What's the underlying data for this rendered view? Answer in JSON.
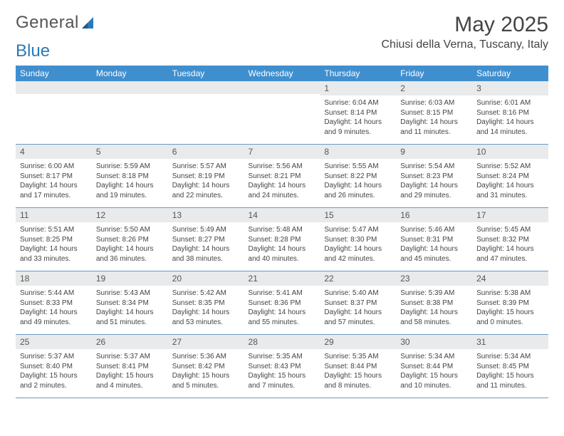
{
  "logo": {
    "text1": "General",
    "text2": "Blue"
  },
  "title": "May 2025",
  "location": "Chiusi della Verna, Tuscany, Italy",
  "colors": {
    "header_bg": "#3f8fcf",
    "header_text": "#ffffff",
    "daynum_bg": "#e9eaeb",
    "border": "#6a9bc5",
    "logo_gray": "#555555",
    "logo_blue": "#2a7ab9"
  },
  "typography": {
    "title_fontsize": 30,
    "location_fontsize": 16,
    "header_fontsize": 12,
    "daynum_fontsize": 12,
    "body_fontsize": 10
  },
  "day_headers": [
    "Sunday",
    "Monday",
    "Tuesday",
    "Wednesday",
    "Thursday",
    "Friday",
    "Saturday"
  ],
  "weeks": [
    [
      {
        "num": "",
        "sunrise": "",
        "sunset": "",
        "daylight": ""
      },
      {
        "num": "",
        "sunrise": "",
        "sunset": "",
        "daylight": ""
      },
      {
        "num": "",
        "sunrise": "",
        "sunset": "",
        "daylight": ""
      },
      {
        "num": "",
        "sunrise": "",
        "sunset": "",
        "daylight": ""
      },
      {
        "num": "1",
        "sunrise": "Sunrise: 6:04 AM",
        "sunset": "Sunset: 8:14 PM",
        "daylight": "Daylight: 14 hours and 9 minutes."
      },
      {
        "num": "2",
        "sunrise": "Sunrise: 6:03 AM",
        "sunset": "Sunset: 8:15 PM",
        "daylight": "Daylight: 14 hours and 11 minutes."
      },
      {
        "num": "3",
        "sunrise": "Sunrise: 6:01 AM",
        "sunset": "Sunset: 8:16 PM",
        "daylight": "Daylight: 14 hours and 14 minutes."
      }
    ],
    [
      {
        "num": "4",
        "sunrise": "Sunrise: 6:00 AM",
        "sunset": "Sunset: 8:17 PM",
        "daylight": "Daylight: 14 hours and 17 minutes."
      },
      {
        "num": "5",
        "sunrise": "Sunrise: 5:59 AM",
        "sunset": "Sunset: 8:18 PM",
        "daylight": "Daylight: 14 hours and 19 minutes."
      },
      {
        "num": "6",
        "sunrise": "Sunrise: 5:57 AM",
        "sunset": "Sunset: 8:19 PM",
        "daylight": "Daylight: 14 hours and 22 minutes."
      },
      {
        "num": "7",
        "sunrise": "Sunrise: 5:56 AM",
        "sunset": "Sunset: 8:21 PM",
        "daylight": "Daylight: 14 hours and 24 minutes."
      },
      {
        "num": "8",
        "sunrise": "Sunrise: 5:55 AM",
        "sunset": "Sunset: 8:22 PM",
        "daylight": "Daylight: 14 hours and 26 minutes."
      },
      {
        "num": "9",
        "sunrise": "Sunrise: 5:54 AM",
        "sunset": "Sunset: 8:23 PM",
        "daylight": "Daylight: 14 hours and 29 minutes."
      },
      {
        "num": "10",
        "sunrise": "Sunrise: 5:52 AM",
        "sunset": "Sunset: 8:24 PM",
        "daylight": "Daylight: 14 hours and 31 minutes."
      }
    ],
    [
      {
        "num": "11",
        "sunrise": "Sunrise: 5:51 AM",
        "sunset": "Sunset: 8:25 PM",
        "daylight": "Daylight: 14 hours and 33 minutes."
      },
      {
        "num": "12",
        "sunrise": "Sunrise: 5:50 AM",
        "sunset": "Sunset: 8:26 PM",
        "daylight": "Daylight: 14 hours and 36 minutes."
      },
      {
        "num": "13",
        "sunrise": "Sunrise: 5:49 AM",
        "sunset": "Sunset: 8:27 PM",
        "daylight": "Daylight: 14 hours and 38 minutes."
      },
      {
        "num": "14",
        "sunrise": "Sunrise: 5:48 AM",
        "sunset": "Sunset: 8:28 PM",
        "daylight": "Daylight: 14 hours and 40 minutes."
      },
      {
        "num": "15",
        "sunrise": "Sunrise: 5:47 AM",
        "sunset": "Sunset: 8:30 PM",
        "daylight": "Daylight: 14 hours and 42 minutes."
      },
      {
        "num": "16",
        "sunrise": "Sunrise: 5:46 AM",
        "sunset": "Sunset: 8:31 PM",
        "daylight": "Daylight: 14 hours and 45 minutes."
      },
      {
        "num": "17",
        "sunrise": "Sunrise: 5:45 AM",
        "sunset": "Sunset: 8:32 PM",
        "daylight": "Daylight: 14 hours and 47 minutes."
      }
    ],
    [
      {
        "num": "18",
        "sunrise": "Sunrise: 5:44 AM",
        "sunset": "Sunset: 8:33 PM",
        "daylight": "Daylight: 14 hours and 49 minutes."
      },
      {
        "num": "19",
        "sunrise": "Sunrise: 5:43 AM",
        "sunset": "Sunset: 8:34 PM",
        "daylight": "Daylight: 14 hours and 51 minutes."
      },
      {
        "num": "20",
        "sunrise": "Sunrise: 5:42 AM",
        "sunset": "Sunset: 8:35 PM",
        "daylight": "Daylight: 14 hours and 53 minutes."
      },
      {
        "num": "21",
        "sunrise": "Sunrise: 5:41 AM",
        "sunset": "Sunset: 8:36 PM",
        "daylight": "Daylight: 14 hours and 55 minutes."
      },
      {
        "num": "22",
        "sunrise": "Sunrise: 5:40 AM",
        "sunset": "Sunset: 8:37 PM",
        "daylight": "Daylight: 14 hours and 57 minutes."
      },
      {
        "num": "23",
        "sunrise": "Sunrise: 5:39 AM",
        "sunset": "Sunset: 8:38 PM",
        "daylight": "Daylight: 14 hours and 58 minutes."
      },
      {
        "num": "24",
        "sunrise": "Sunrise: 5:38 AM",
        "sunset": "Sunset: 8:39 PM",
        "daylight": "Daylight: 15 hours and 0 minutes."
      }
    ],
    [
      {
        "num": "25",
        "sunrise": "Sunrise: 5:37 AM",
        "sunset": "Sunset: 8:40 PM",
        "daylight": "Daylight: 15 hours and 2 minutes."
      },
      {
        "num": "26",
        "sunrise": "Sunrise: 5:37 AM",
        "sunset": "Sunset: 8:41 PM",
        "daylight": "Daylight: 15 hours and 4 minutes."
      },
      {
        "num": "27",
        "sunrise": "Sunrise: 5:36 AM",
        "sunset": "Sunset: 8:42 PM",
        "daylight": "Daylight: 15 hours and 5 minutes."
      },
      {
        "num": "28",
        "sunrise": "Sunrise: 5:35 AM",
        "sunset": "Sunset: 8:43 PM",
        "daylight": "Daylight: 15 hours and 7 minutes."
      },
      {
        "num": "29",
        "sunrise": "Sunrise: 5:35 AM",
        "sunset": "Sunset: 8:44 PM",
        "daylight": "Daylight: 15 hours and 8 minutes."
      },
      {
        "num": "30",
        "sunrise": "Sunrise: 5:34 AM",
        "sunset": "Sunset: 8:44 PM",
        "daylight": "Daylight: 15 hours and 10 minutes."
      },
      {
        "num": "31",
        "sunrise": "Sunrise: 5:34 AM",
        "sunset": "Sunset: 8:45 PM",
        "daylight": "Daylight: 15 hours and 11 minutes."
      }
    ]
  ]
}
